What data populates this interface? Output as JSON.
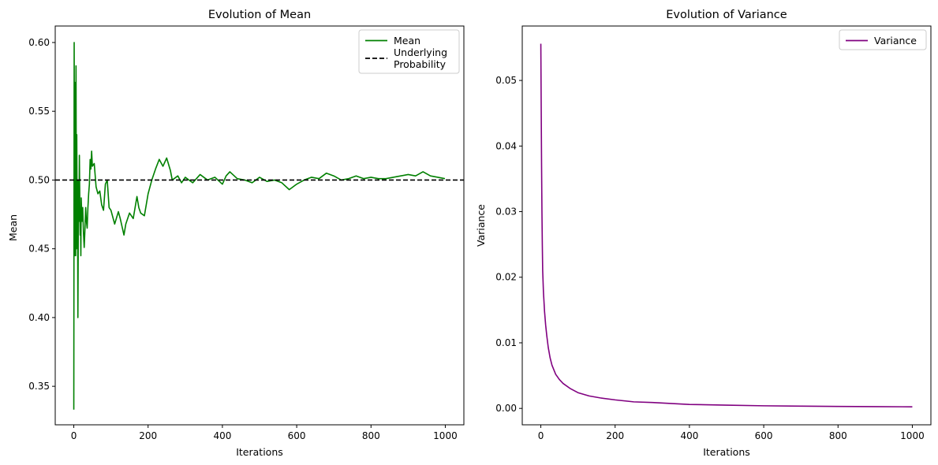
{
  "colors": {
    "mean_line": "#008000",
    "underlying_line": "#000000",
    "variance_line": "#800080",
    "axis": "#000000",
    "background": "#ffffff"
  },
  "chart_data": [
    {
      "type": "line",
      "title": "Evolution of Mean",
      "xlabel": "Iterations",
      "ylabel": "Mean",
      "xlim": [
        -50,
        1050
      ],
      "ylim": [
        0.322,
        0.612
      ],
      "xticks": [
        0,
        200,
        400,
        600,
        800,
        1000
      ],
      "yticks": [
        0.35,
        0.4,
        0.45,
        0.5,
        0.55,
        0.6
      ],
      "ytick_labels": [
        "0.35",
        "0.40",
        "0.45",
        "0.50",
        "0.55",
        "0.60"
      ],
      "grid": false,
      "legend": {
        "placement": "upper right",
        "entries": [
          "Mean",
          "Underlying\nProbability"
        ]
      },
      "series": [
        {
          "name": "Mean",
          "style": "solid",
          "x": [
            0,
            1,
            2,
            3,
            4,
            5,
            6,
            7,
            8,
            9,
            10,
            11,
            12,
            13,
            14,
            15,
            16,
            17,
            18,
            19,
            20,
            22,
            24,
            26,
            28,
            30,
            32,
            34,
            36,
            38,
            40,
            42,
            44,
            46,
            48,
            50,
            55,
            60,
            65,
            70,
            75,
            80,
            85,
            90,
            95,
            100,
            110,
            120,
            125,
            130,
            135,
            140,
            150,
            160,
            170,
            175,
            180,
            190,
            200,
            210,
            220,
            230,
            240,
            250,
            260,
            265,
            270,
            280,
            290,
            300,
            320,
            340,
            360,
            380,
            400,
            410,
            420,
            440,
            460,
            480,
            500,
            520,
            540,
            560,
            580,
            600,
            620,
            640,
            660,
            680,
            700,
            720,
            740,
            760,
            780,
            800,
            820,
            840,
            860,
            880,
            900,
            920,
            940,
            960,
            980,
            999
          ],
          "y": [
            0.333,
            0.6,
            0.445,
            0.571,
            0.5,
            0.445,
            0.583,
            0.45,
            0.533,
            0.47,
            0.5,
            0.4,
            0.46,
            0.5,
            0.47,
            0.518,
            0.49,
            0.46,
            0.475,
            0.445,
            0.487,
            0.47,
            0.48,
            0.462,
            0.451,
            0.464,
            0.48,
            0.47,
            0.465,
            0.48,
            0.49,
            0.497,
            0.515,
            0.508,
            0.521,
            0.51,
            0.512,
            0.495,
            0.49,
            0.492,
            0.482,
            0.478,
            0.497,
            0.5,
            0.48,
            0.478,
            0.468,
            0.477,
            0.472,
            0.466,
            0.46,
            0.468,
            0.476,
            0.472,
            0.488,
            0.48,
            0.476,
            0.474,
            0.49,
            0.5,
            0.508,
            0.515,
            0.51,
            0.516,
            0.507,
            0.5,
            0.501,
            0.503,
            0.498,
            0.502,
            0.498,
            0.504,
            0.5,
            0.502,
            0.497,
            0.503,
            0.506,
            0.501,
            0.5,
            0.498,
            0.502,
            0.499,
            0.5,
            0.498,
            0.493,
            0.497,
            0.5,
            0.502,
            0.501,
            0.505,
            0.503,
            0.5,
            0.501,
            0.503,
            0.501,
            0.502,
            0.501,
            0.501,
            0.502,
            0.503,
            0.504,
            0.503,
            0.506,
            0.503,
            0.502,
            0.501
          ]
        },
        {
          "name": "Underlying\nProbability",
          "style": "dashed",
          "y_constant": 0.5
        }
      ]
    },
    {
      "type": "line",
      "title": "Evolution of Variance",
      "xlabel": "Iterations",
      "ylabel": "Variance",
      "xlim": [
        -50,
        1050
      ],
      "ylim": [
        -0.0025,
        0.0583
      ],
      "xticks": [
        0,
        200,
        400,
        600,
        800,
        1000
      ],
      "yticks": [
        0.0,
        0.01,
        0.02,
        0.03,
        0.04,
        0.05
      ],
      "ytick_labels": [
        "0.00",
        "0.01",
        "0.02",
        "0.03",
        "0.04",
        "0.05"
      ],
      "grid": false,
      "legend": {
        "placement": "upper right",
        "entries": [
          "Variance"
        ]
      },
      "series": [
        {
          "name": "Variance",
          "style": "solid",
          "x": [
            0,
            1,
            2,
            3,
            4,
            5,
            7,
            10,
            13,
            16,
            20,
            25,
            30,
            40,
            50,
            60,
            80,
            100,
            130,
            160,
            200,
            250,
            300,
            400,
            500,
            600,
            700,
            800,
            900,
            1000
          ],
          "y": [
            0.0556,
            0.046,
            0.037,
            0.03,
            0.025,
            0.021,
            0.0178,
            0.0148,
            0.0127,
            0.0111,
            0.0093,
            0.0077,
            0.0066,
            0.0052,
            0.0044,
            0.0038,
            0.003,
            0.0024,
            0.0019,
            0.0016,
            0.0013,
            0.001,
            0.0009,
            0.0006,
            0.0005,
            0.0004,
            0.00035,
            0.0003,
            0.00027,
            0.00024
          ]
        }
      ]
    }
  ]
}
